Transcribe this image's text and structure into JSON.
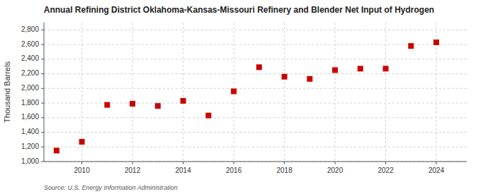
{
  "chart_data": {
    "type": "scatter",
    "title": "Annual Refining District Oklahoma-Kansas-Missouri Refinery and Blender Net Input of Hydrogen",
    "ylabel": "Thousand Barrels",
    "source": "Source: U.S. Energy Information Administration",
    "x": [
      2009,
      2010,
      2011,
      2012,
      2013,
      2014,
      2015,
      2016,
      2017,
      2018,
      2019,
      2020,
      2021,
      2022,
      2023,
      2024
    ],
    "values": [
      1150,
      1270,
      1775,
      1790,
      1760,
      1830,
      1630,
      1960,
      2290,
      2160,
      2130,
      2250,
      2270,
      2270,
      2580,
      2630
    ],
    "color": "#cc0000",
    "marker": "square",
    "grid": true,
    "xlim": [
      2008.5,
      2025.2
    ],
    "xticks": [
      2010,
      2012,
      2014,
      2016,
      2018,
      2020,
      2022,
      2024
    ],
    "ylim": [
      1000,
      2900
    ],
    "yticks": [
      {
        "value": 1000,
        "label": "1,000"
      },
      {
        "value": 1200,
        "label": "1,200"
      },
      {
        "value": 1400,
        "label": "1,400"
      },
      {
        "value": 1600,
        "label": "1,600"
      },
      {
        "value": 1800,
        "label": "1,800"
      },
      {
        "value": 2000,
        "label": "2,000"
      },
      {
        "value": 2200,
        "label": "2,200"
      },
      {
        "value": 2400,
        "label": "2,400"
      },
      {
        "value": 2600,
        "label": "2,600"
      },
      {
        "value": 2800,
        "label": "2,800"
      }
    ]
  }
}
